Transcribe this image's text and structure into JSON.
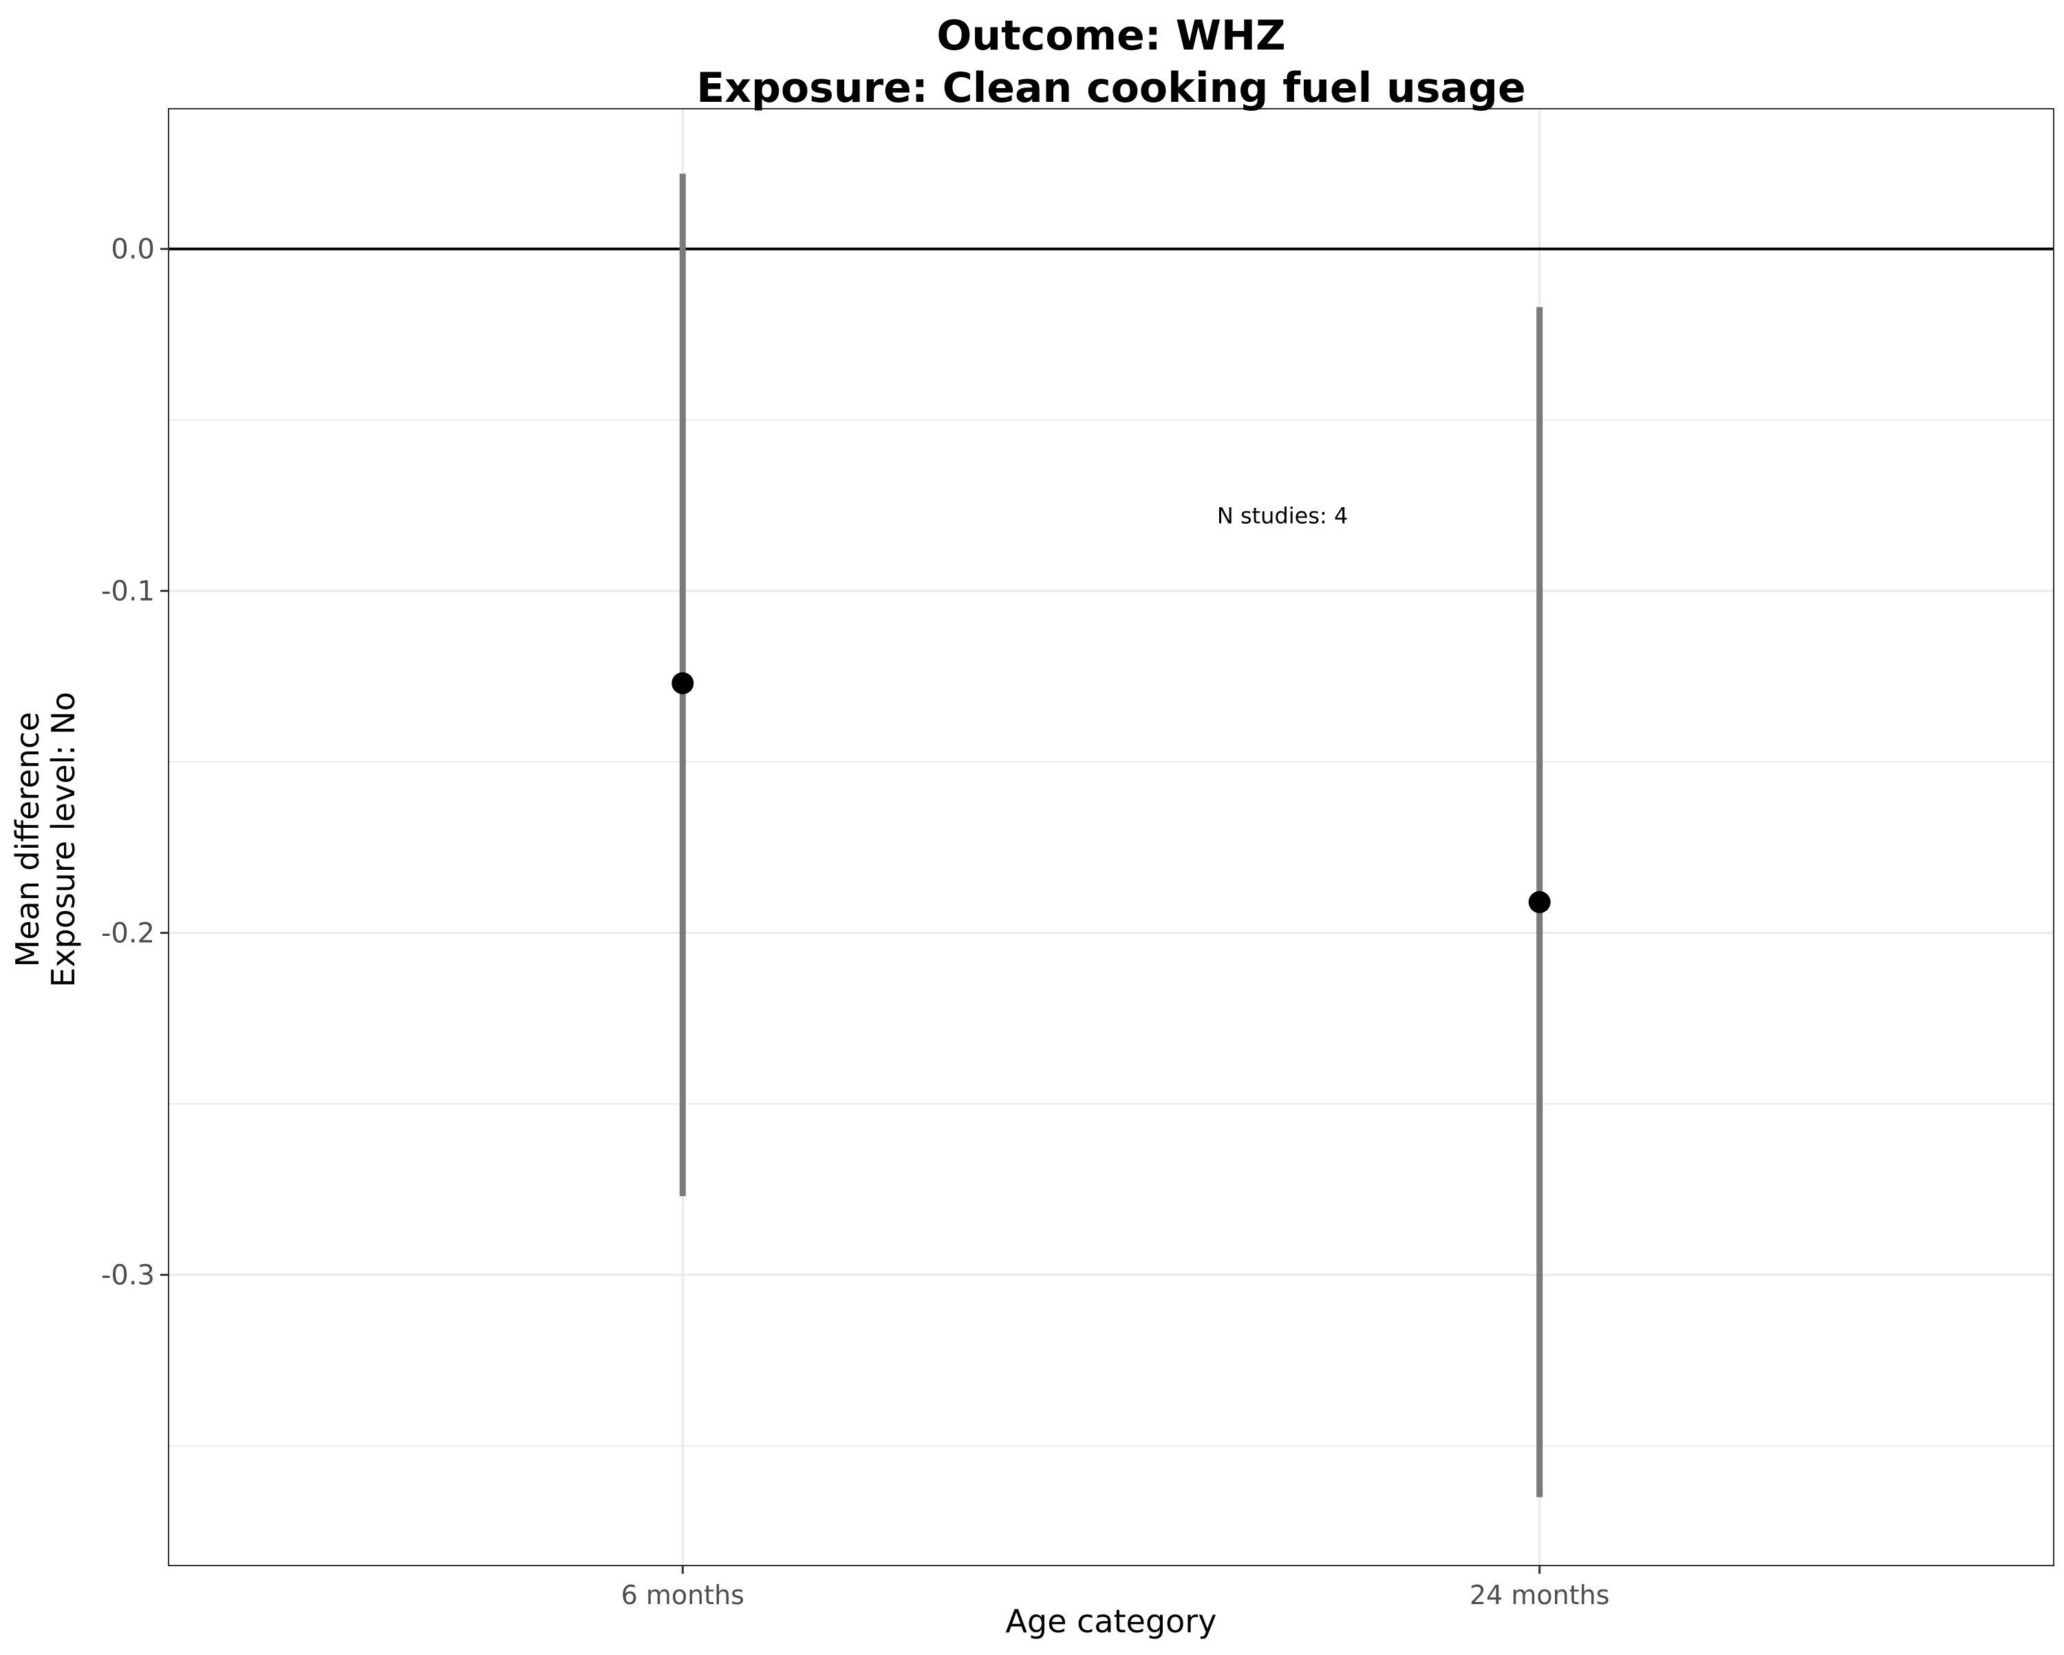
{
  "chart_data": {
    "type": "scatter",
    "subtype": "point-range",
    "title_lines": [
      "Outcome: WHZ",
      "Exposure: Clean cooking fuel usage"
    ],
    "xlabel": "Age category",
    "ylabel_lines": [
      "Mean difference",
      "Exposure level: No"
    ],
    "categories": [
      "6 months",
      "24 months"
    ],
    "values": [
      -0.127,
      -0.191
    ],
    "lower": [
      -0.277,
      -0.365
    ],
    "upper": [
      0.022,
      -0.017
    ],
    "y_ticks": [
      0.0,
      -0.1,
      -0.2,
      -0.3
    ],
    "y_tick_labels": [
      "0.0",
      "-0.1",
      "-0.2",
      "-0.3"
    ],
    "ylim": [
      -0.385,
      0.041
    ],
    "reference_line": 0.0,
    "annotation": {
      "text": "N studies: 4",
      "x_category": 0.7,
      "y": -0.078
    },
    "grid": true,
    "legend": "none",
    "colors": {
      "point": "#000000",
      "interval": "#7a7a7a",
      "grid": "#ebebeb",
      "panel_border": "#333333"
    }
  }
}
